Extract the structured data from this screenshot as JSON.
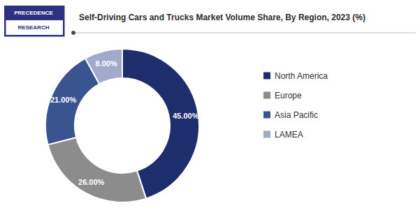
{
  "chart_data": {
    "type": "pie",
    "title": "Self-Driving Cars and Trucks Market Volume Share, By Region, 2023 (%)",
    "categories": [
      "North America",
      "Europe",
      "Asia Pacific",
      "LAMEA"
    ],
    "values": [
      45.0,
      26.0,
      21.0,
      8.0
    ],
    "value_labels": [
      "45.00%",
      "26.00%",
      "21.00%",
      "8.00%"
    ],
    "colors": [
      "#1e2d6b",
      "#8c8c8c",
      "#3a5490",
      "#a0abcc"
    ],
    "data_labels": true,
    "legend": "right",
    "annotations": [
      "PRECEDENCE",
      "RESEARCH"
    ]
  }
}
